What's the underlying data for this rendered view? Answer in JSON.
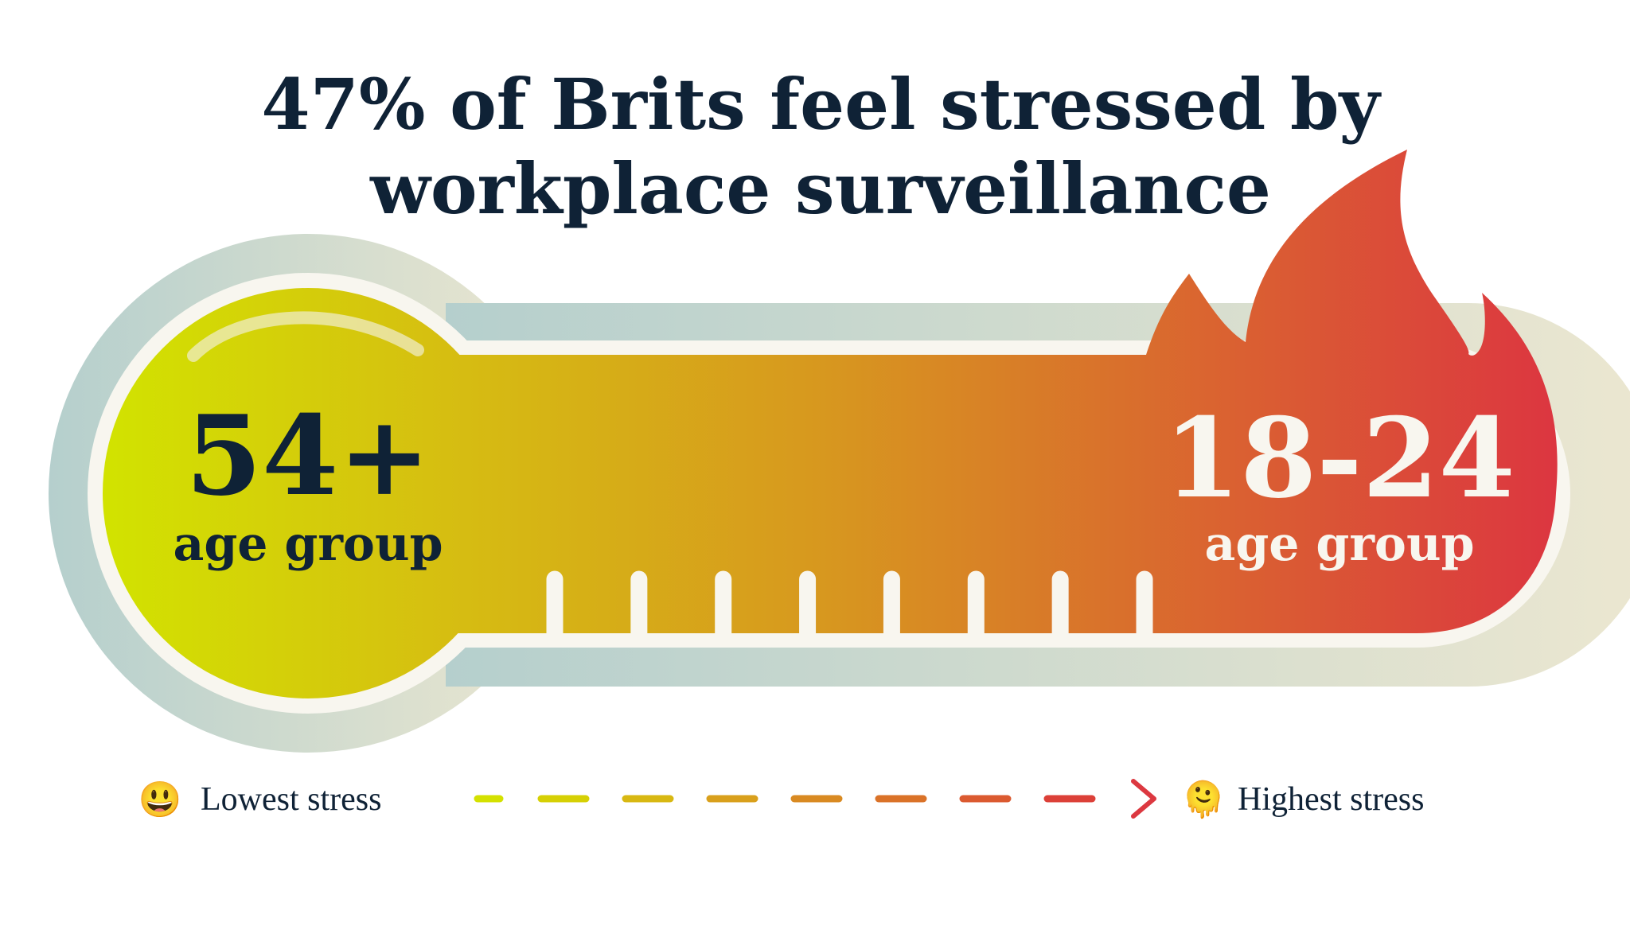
{
  "title": {
    "line1": "47% of Brits feel stressed by",
    "line2": "workplace surveillance"
  },
  "thermometer": {
    "low_end": {
      "value": "54+",
      "label": "age group"
    },
    "high_end": {
      "value": "18-24",
      "label": "age group"
    },
    "tick_count": 8
  },
  "legend": {
    "low_emoji": "😃",
    "low_label": "Lowest stress",
    "high_emoji": "🫠",
    "high_label": "Highest stress",
    "arrow_icon": "arrow-right-icon"
  },
  "colors": {
    "title_text": "#0f2236",
    "low_stress": "#d4e100",
    "mid_stress": "#d89a22",
    "high_stress": "#dc3840",
    "halo_left": "#b9d3d0",
    "halo_right": "#ebe6cf",
    "rim": "#f8f6ef"
  }
}
